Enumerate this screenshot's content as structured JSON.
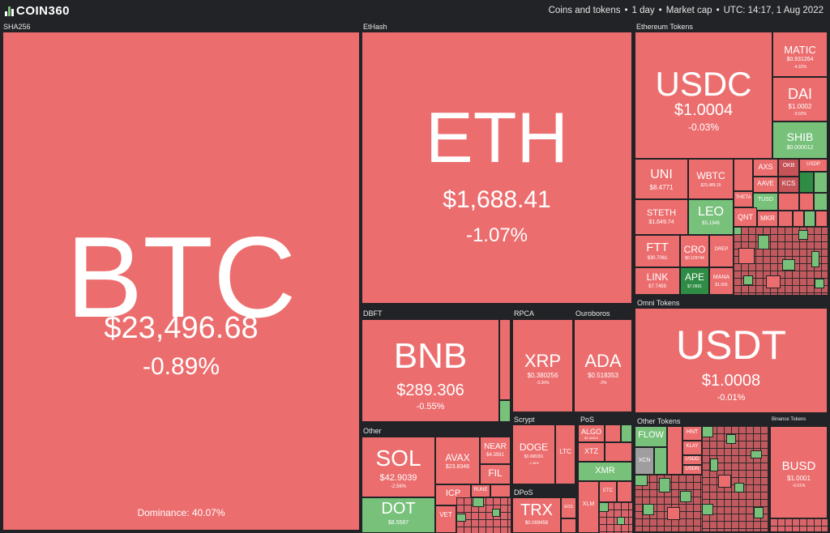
{
  "header": {
    "logo_text": "COIN360",
    "crumb_1": "Coins and tokens",
    "crumb_2": "1 day",
    "crumb_3": "Market cap",
    "crumb_4": "UTC: 14:17, 1 Aug 2022",
    "separator": "•"
  },
  "colors": {
    "negative": "#ec6d6e",
    "positive": "#78c17b",
    "strong_positive": "#2f8c45",
    "background": "#222326",
    "neutral": "#9e9e9e"
  },
  "sectors": {
    "sha256": "SHA256",
    "ethash": "EtHash",
    "ethereum_tokens": "Ethereum Tokens",
    "dbft": "DBFT",
    "rpca": "RPCA",
    "ouroboros": "Ouroboros",
    "omni_tokens": "Omni Tokens",
    "other": "Other",
    "scrypt": "Scrypt",
    "pos": "PoS",
    "dpos": "DPoS",
    "other_tokens": "Other Tokens",
    "binance_tokens": "Binance Tokens"
  },
  "coins": {
    "btc": {
      "symbol": "BTC",
      "price": "$23,496.68",
      "change": "-0.89%",
      "dominance": "Dominance: 40.07%"
    },
    "eth": {
      "symbol": "ETH",
      "price": "$1,688.41",
      "change": "-1.07%"
    },
    "usdc": {
      "symbol": "USDC",
      "price": "$1.0004",
      "change": "-0.03%"
    },
    "matic": {
      "symbol": "MATIC",
      "price": "$0.931264",
      "change": "-4.32%"
    },
    "dai": {
      "symbol": "DAI",
      "price": "$1.0002",
      "change": "-0.02%"
    },
    "shib": {
      "symbol": "SHIB",
      "price": "$0.000012",
      "change": "+0.31%"
    },
    "uni": {
      "symbol": "UNI",
      "price": "$8.4771",
      "change": ""
    },
    "wbtc": {
      "symbol": "WBTC",
      "price": "$23,489.15",
      "change": ""
    },
    "steth": {
      "symbol": "STETH",
      "price": "$1,649.74",
      "change": ""
    },
    "leo": {
      "symbol": "LEO",
      "price": "$5.1346",
      "change": ""
    },
    "ftt": {
      "symbol": "FTT",
      "price": "$30.7061",
      "change": ""
    },
    "cro": {
      "symbol": "CRO",
      "price": "$0.129744",
      "change": ""
    },
    "link": {
      "symbol": "LINK",
      "price": "$7.7459",
      "change": ""
    },
    "ape": {
      "symbol": "APE",
      "price": "$7.0991",
      "change": ""
    },
    "axs": {
      "symbol": "AXS"
    },
    "okb": {
      "symbol": "OKB"
    },
    "usdp": {
      "symbol": "USDP"
    },
    "aave": {
      "symbol": "AAVE"
    },
    "kcs": {
      "symbol": "KCS"
    },
    "theta": {
      "symbol": "THETA"
    },
    "tusd": {
      "symbol": "TUSD"
    },
    "qnt": {
      "symbol": "QNT"
    },
    "mkr": {
      "symbol": "MKR"
    },
    "mana": {
      "symbol": "MANA",
      "price": "$1.005"
    },
    "drep": {
      "symbol": "DREP"
    },
    "bnb": {
      "symbol": "BNB",
      "price": "$289.306",
      "change": "-0.55%"
    },
    "xrp": {
      "symbol": "XRP",
      "price": "$0.380256",
      "change": "-3.36%"
    },
    "ada": {
      "symbol": "ADA",
      "price": "$0.518353",
      "change": "-2%"
    },
    "usdt": {
      "symbol": "USDT",
      "price": "$1.0008",
      "change": "-0.01%"
    },
    "sol": {
      "symbol": "SOL",
      "price": "$42.9039",
      "change": "-2.56%"
    },
    "avax": {
      "symbol": "AVAX",
      "price": "$23.8346",
      "change": ""
    },
    "near": {
      "symbol": "NEAR",
      "price": "$4.3591",
      "change": ""
    },
    "fil": {
      "symbol": "FIL"
    },
    "icp": {
      "symbol": "ICP"
    },
    "rune": {
      "symbol": "RUNE"
    },
    "dot": {
      "symbol": "DOT",
      "price": "$8.5587"
    },
    "vet": {
      "symbol": "VET"
    },
    "etc": {
      "symbol": "ETC"
    },
    "doge": {
      "symbol": "DOGE",
      "price": "$0.068301",
      "change": "-1.26%"
    },
    "ltc": {
      "symbol": "LTC"
    },
    "algo": {
      "symbol": "ALGO",
      "price": "$0.32454"
    },
    "xtz": {
      "symbol": "XTZ"
    },
    "xmr": {
      "symbol": "XMR"
    },
    "xlm": {
      "symbol": "XLM"
    },
    "trx": {
      "symbol": "TRX",
      "price": "$0.069456"
    },
    "eos": {
      "symbol": "EOS"
    },
    "flow": {
      "symbol": "FLOW"
    },
    "hnt": {
      "symbol": "HNT"
    },
    "klay": {
      "symbol": "KLAY"
    },
    "usdd": {
      "symbol": "USDD"
    },
    "usdn": {
      "symbol": "USDN"
    },
    "xcn": {
      "symbol": "XCN"
    },
    "busd": {
      "symbol": "BUSD",
      "price": "$1.0001",
      "change": "-0.01%"
    }
  }
}
